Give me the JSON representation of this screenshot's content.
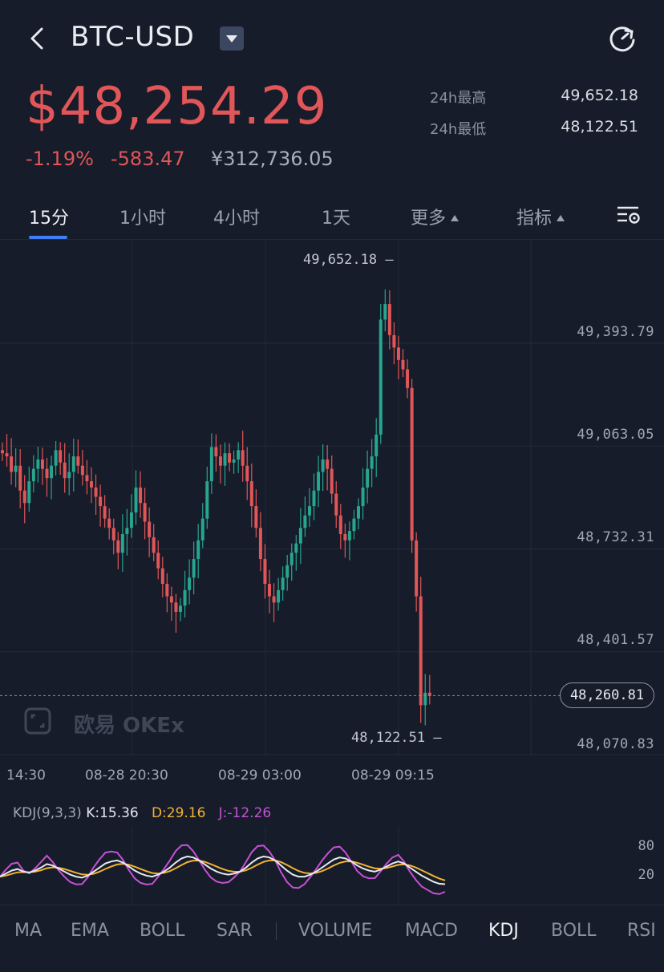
{
  "header": {
    "pair": "BTC-USD",
    "back_icon": "chevron-left-icon",
    "dropdown_icon": "caret-down-icon",
    "refresh_icon": "refresh-icon"
  },
  "ticker": {
    "price": "$48,254.29",
    "change_pct": "-1.19%",
    "change_abs": "-583.47",
    "price_cny": "¥312,736.05",
    "high_label": "24h最高",
    "high_value": "49,652.18",
    "low_label": "24h最低",
    "low_value": "48,122.51",
    "down_color": "#e05659",
    "up_color": "#27a58f"
  },
  "intervals": {
    "items": [
      "15分",
      "1小时",
      "4小时",
      "1天",
      "更多",
      "指标"
    ],
    "active": "15分",
    "settings_icon": "chart-settings-icon"
  },
  "chart_data": {
    "type": "candlestick",
    "y_axis_labels": [
      "49,393.79",
      "49,063.05",
      "48,732.31",
      "48,401.57",
      "48,070.83"
    ],
    "x_axis_labels": [
      "14:30",
      "08-28 20:30",
      "08-29 03:00",
      "08-29 09:15"
    ],
    "high_annotation": "49,652.18",
    "low_annotation": "48,122.51",
    "last_price": "48,260.81",
    "closes": [
      49040,
      49030,
      48980,
      49000,
      48920,
      48880,
      48950,
      48990,
      49020,
      48990,
      48960,
      49000,
      49050,
      49010,
      48960,
      48980,
      49030,
      49000,
      48970,
      48950,
      48930,
      48900,
      48870,
      48830,
      48800,
      48760,
      48720,
      48780,
      48800,
      48850,
      48930,
      48880,
      48820,
      48770,
      48720,
      48670,
      48620,
      48580,
      48560,
      48530,
      48550,
      48600,
      48640,
      48700,
      48760,
      48830,
      48950,
      49060,
      49030,
      49000,
      49040,
      49010,
      49020,
      49050,
      49000,
      48950,
      48870,
      48800,
      48700,
      48620,
      48580,
      48560,
      48600,
      48640,
      48680,
      48720,
      48750,
      48800,
      48840,
      48870,
      48920,
      48980,
      49020,
      48990,
      48910,
      48840,
      48780,
      48760,
      48790,
      48830,
      48870,
      48930,
      48990,
      49030,
      49100,
      49470,
      49520,
      49420,
      49380,
      49340,
      49310,
      49250,
      48760,
      48580,
      48230,
      48270,
      48260
    ],
    "watermark": "欧易 OKEx"
  },
  "kdj": {
    "label": "KDJ(9,3,3)",
    "k_text": "K:15.36",
    "d_text": "D:29.16",
    "j_text": "J:-12.26",
    "k_color": "#e6e9ef",
    "d_color": "#f2b233",
    "j_color": "#c651d6",
    "y_labels": [
      "80",
      "20"
    ],
    "k_series": [
      30,
      36,
      42,
      45,
      40,
      38,
      42,
      48,
      55,
      52,
      46,
      40,
      34,
      30,
      28,
      32,
      40,
      48,
      56,
      60,
      62,
      58,
      50,
      42,
      36,
      32,
      30,
      34,
      40,
      48,
      58,
      66,
      70,
      68,
      62,
      54,
      46,
      40,
      36,
      34,
      36,
      40,
      48,
      58,
      66,
      70,
      68,
      62,
      52,
      42,
      34,
      30,
      30,
      34,
      40,
      48,
      56,
      64,
      68,
      66,
      60,
      52,
      46,
      42,
      40,
      44,
      50,
      56,
      60,
      56,
      48,
      40,
      32,
      26,
      20,
      16,
      15
    ]
  },
  "indicators": {
    "main": [
      "MA",
      "EMA",
      "BOLL",
      "SAR"
    ],
    "sub": [
      "VOLUME",
      "MACD",
      "KDJ",
      "BOLL",
      "RSI"
    ],
    "active": "KDJ"
  }
}
